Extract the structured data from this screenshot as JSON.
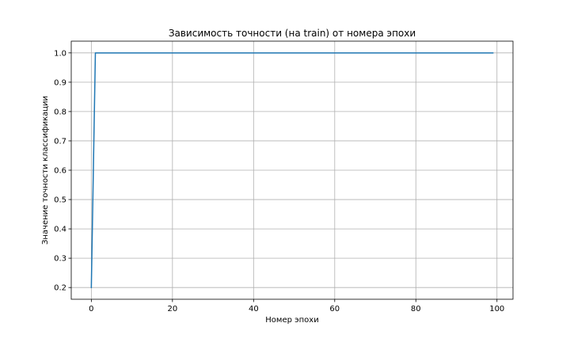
{
  "chart_data": {
    "type": "line",
    "title": "Зависимость точности (на train) от номера эпохи",
    "xlabel": "Номер эпохи",
    "ylabel": "Значение точности классификации",
    "xlim": [
      -4.95,
      103.95
    ],
    "ylim": [
      0.16,
      1.04
    ],
    "xticks": [
      0,
      20,
      40,
      60,
      80,
      100
    ],
    "yticks": [
      0.2,
      0.3,
      0.4,
      0.5,
      0.6,
      0.7,
      0.8,
      0.9,
      1.0
    ],
    "xtick_labels": [
      "0",
      "20",
      "40",
      "60",
      "80",
      "100"
    ],
    "ytick_labels": [
      "0.2",
      "0.3",
      "0.4",
      "0.5",
      "0.6",
      "0.7",
      "0.8",
      "0.9",
      "1.0"
    ],
    "grid": true,
    "series": [
      {
        "color": "#1f77b4",
        "x": [
          0,
          1,
          99
        ],
        "y": [
          0.2,
          1.0,
          1.0
        ]
      }
    ]
  }
}
